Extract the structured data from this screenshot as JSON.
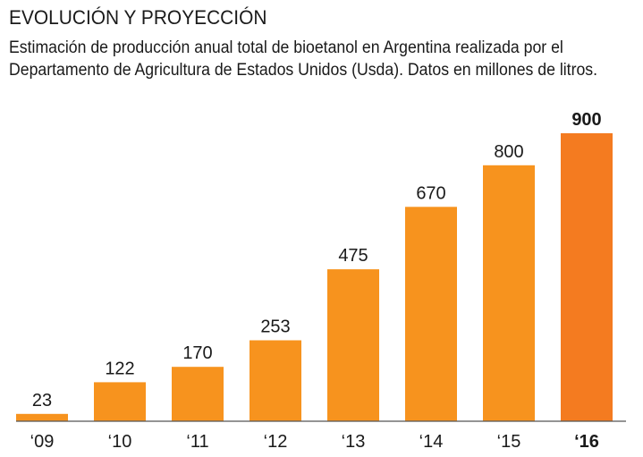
{
  "title": "EVOLUCIÓN Y PROYECCIÓN",
  "subtitle_lines": [
    "Estimación de producción anual total de bioetanol en Argentina realizada por el",
    "Departamento de Agricultura de Estados Unidos (Usda). Datos en millones de litros."
  ],
  "colors": {
    "bar": "#F7931E",
    "bar_highlight": "#F47B20",
    "baseline": "#555555"
  },
  "chart_data": {
    "type": "bar",
    "categories": [
      "‘09",
      "‘10",
      "‘11",
      "‘12",
      "‘13",
      "‘14",
      "‘15",
      "‘16"
    ],
    "values": [
      23,
      122,
      170,
      253,
      475,
      670,
      800,
      900
    ],
    "value_labels": [
      "23",
      "122",
      "170",
      "253",
      "475",
      "670",
      "800",
      "900"
    ],
    "highlight_index": 7,
    "ylim": [
      0,
      900
    ],
    "grid": false,
    "xlabel": "",
    "ylabel": ""
  }
}
